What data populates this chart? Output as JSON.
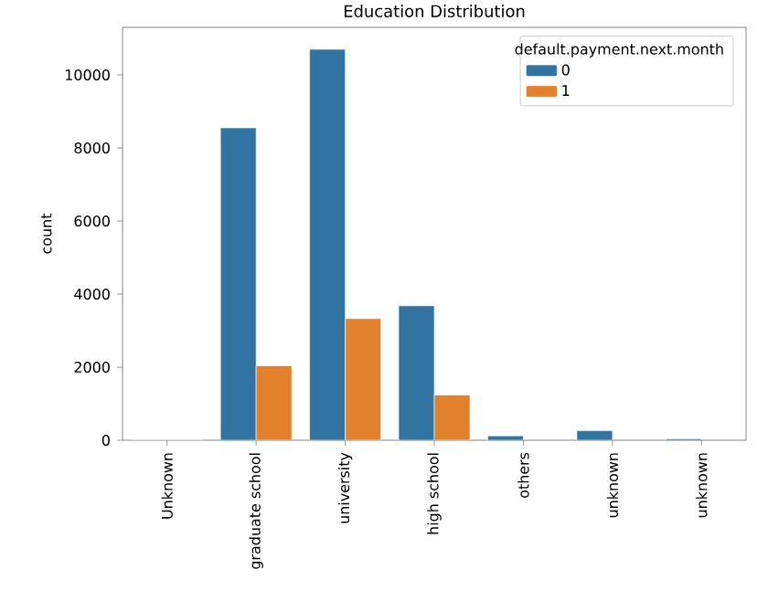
{
  "chart_data": {
    "type": "bar",
    "title": "Education Distribution",
    "ylabel": "count",
    "legend_title": "default.payment.next.month",
    "categories": [
      "Unknown",
      "graduate school",
      "university",
      "high school",
      "others",
      "unknown",
      "unknown"
    ],
    "series": [
      {
        "name": "0",
        "color": "#3274a1",
        "values": [
          0,
          8550,
          10700,
          3680,
          120,
          260,
          40
        ]
      },
      {
        "name": "1",
        "color": "#e1812c",
        "values": [
          0,
          2040,
          3330,
          1240,
          null,
          null,
          null
        ]
      }
    ],
    "ylim": [
      0,
      11300
    ],
    "yticks": [
      0,
      2000,
      4000,
      6000,
      8000,
      10000
    ],
    "legend": "top right",
    "grid": false
  }
}
